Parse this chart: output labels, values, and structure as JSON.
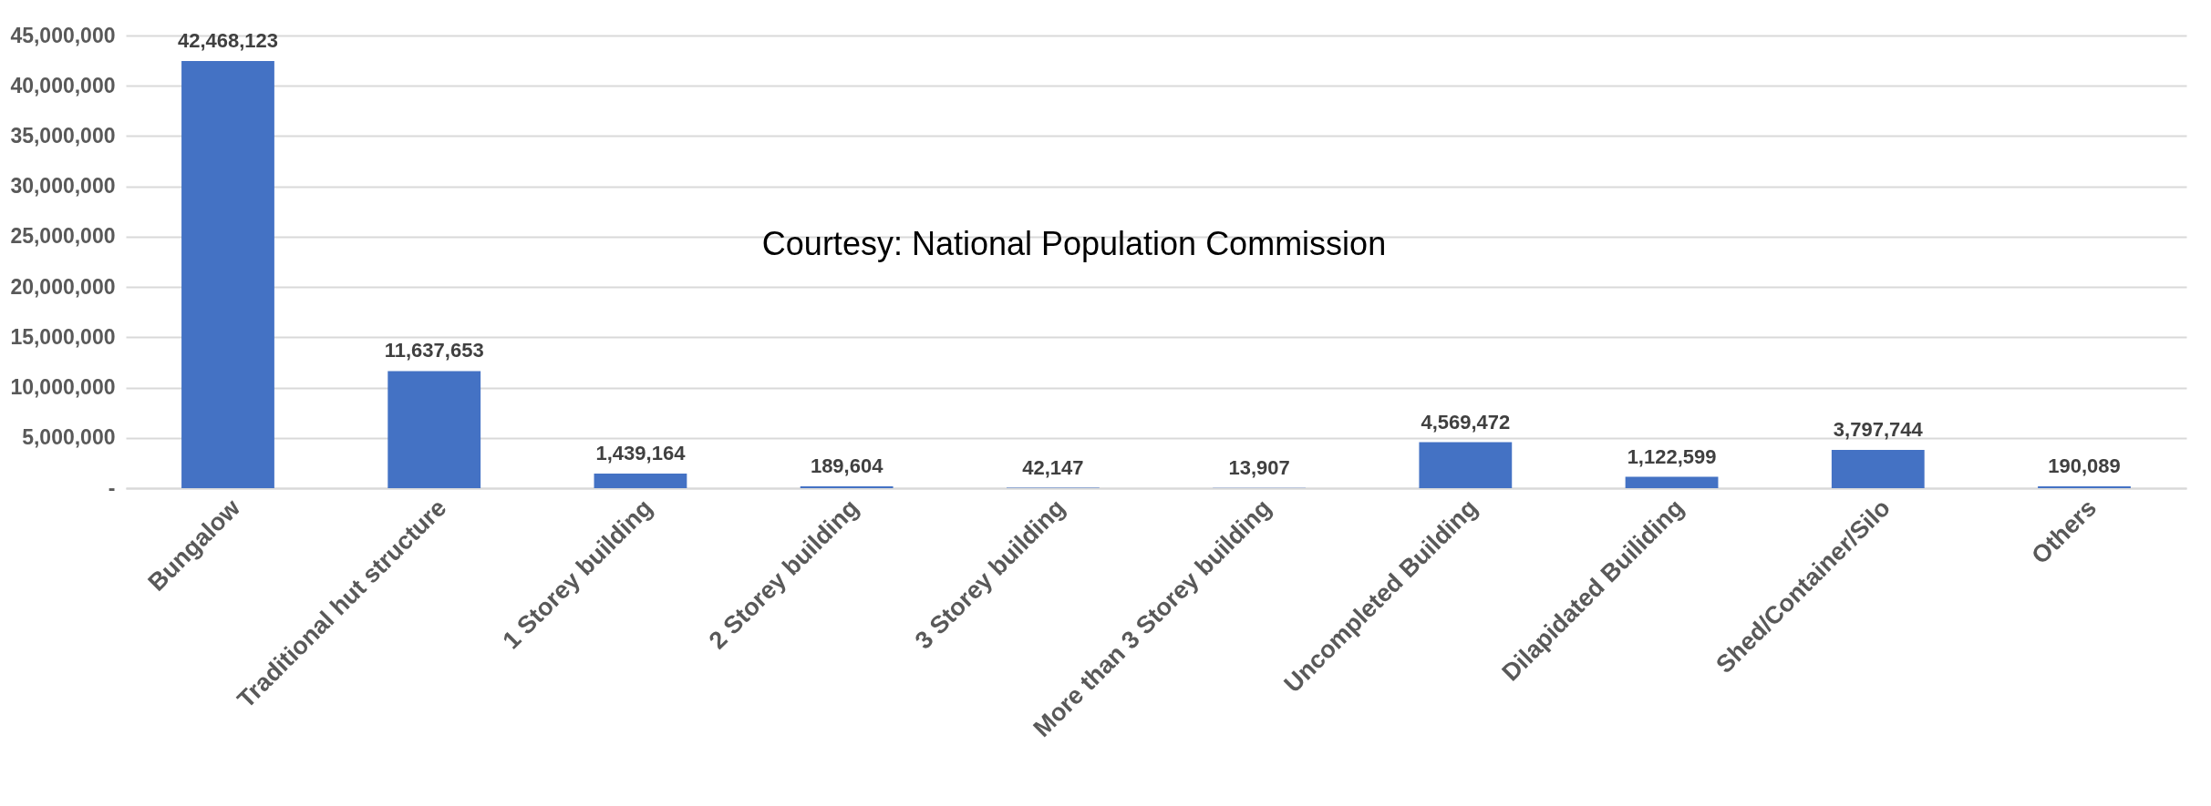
{
  "chart_data": {
    "type": "bar",
    "categories": [
      "Bungalow",
      "Traditional hut structure",
      "1 Storey building",
      "2 Storey building",
      "3 Storey building",
      "More than 3 Storey building",
      "Uncompleted Building",
      "Dilapidated Builiding",
      "Shed/Container/Silo",
      "Others"
    ],
    "values": [
      42468123,
      11637653,
      1439164,
      189604,
      42147,
      13907,
      4569472,
      1122599,
      3797744,
      190089
    ],
    "value_labels": [
      "42,468,123",
      "11,637,653",
      "1,439,164",
      "189,604",
      "42,147",
      "13,907",
      "4,569,472",
      "1,122,599",
      "3,797,744",
      "190,089"
    ],
    "color": "#4472c4",
    "ylim": [
      0,
      45000000
    ],
    "yticks": [
      {
        "value": 0,
        "label": "-"
      },
      {
        "value": 5000000,
        "label": "5,000,000"
      },
      {
        "value": 10000000,
        "label": "10,000,000"
      },
      {
        "value": 15000000,
        "label": "15,000,000"
      },
      {
        "value": 20000000,
        "label": "20,000,000"
      },
      {
        "value": 25000000,
        "label": "25,000,000"
      },
      {
        "value": 30000000,
        "label": "30,000,000"
      },
      {
        "value": 35000000,
        "label": "35,000,000"
      },
      {
        "value": 40000000,
        "label": "40,000,000"
      },
      {
        "value": 45000000,
        "label": "45,000,000"
      }
    ],
    "grid": "y",
    "annotations": [
      "Courtesy: National Population Commission"
    ]
  }
}
